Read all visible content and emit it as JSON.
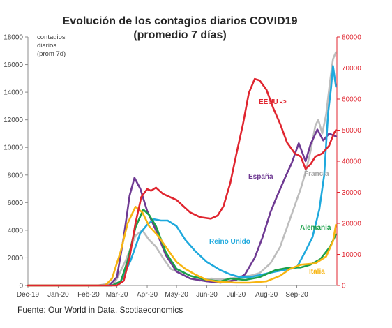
{
  "chart_data": {
    "type": "line",
    "title": "Evolución de los contagios diarios COVID19",
    "subtitle": "(promedio 7 días)",
    "ylabel_left_lines": [
      "contagios",
      "diarios",
      "(prom 7d)"
    ],
    "ylim_left": [
      0,
      18000
    ],
    "ylim_right": [
      0,
      80000
    ],
    "yticks_left": [
      0,
      2000,
      4000,
      6000,
      8000,
      10000,
      12000,
      14000,
      16000,
      18000
    ],
    "yticks_right": [
      0,
      10000,
      20000,
      30000,
      40000,
      50000,
      60000,
      70000,
      80000
    ],
    "x_range": [
      "2019-12-01",
      "2020-10-12"
    ],
    "x_ticks": [
      {
        "date": "2019-12-01",
        "label": "Dec-19"
      },
      {
        "date": "2020-01-01",
        "label": "Jan-20"
      },
      {
        "date": "2020-02-01",
        "label": "Feb-20"
      },
      {
        "date": "2020-03-01",
        "label": "Mar-20"
      },
      {
        "date": "2020-04-01",
        "label": "Apr-20"
      },
      {
        "date": "2020-05-01",
        "label": "May-20"
      },
      {
        "date": "2020-06-01",
        "label": "Jun-20"
      },
      {
        "date": "2020-07-01",
        "label": "Jul-20"
      },
      {
        "date": "2020-08-01",
        "label": "Aug-20"
      },
      {
        "date": "2020-09-01",
        "label": "Sep-20"
      }
    ],
    "grid": false,
    "series": [
      {
        "name": "Francia",
        "color": "#bdbdbd",
        "axis": "left",
        "points": [
          [
            "2019-12-01",
            0
          ],
          [
            "2020-02-10",
            0
          ],
          [
            "2020-02-28",
            200
          ],
          [
            "2020-03-10",
            1800
          ],
          [
            "2020-03-20",
            3600
          ],
          [
            "2020-03-27",
            4000
          ],
          [
            "2020-04-03",
            3300
          ],
          [
            "2020-04-10",
            2800
          ],
          [
            "2020-04-18",
            1900
          ],
          [
            "2020-04-25",
            1200
          ],
          [
            "2020-05-05",
            900
          ],
          [
            "2020-05-15",
            500
          ],
          [
            "2020-05-25",
            350
          ],
          [
            "2020-06-05",
            500
          ],
          [
            "2020-06-15",
            450
          ],
          [
            "2020-06-25",
            500
          ],
          [
            "2020-07-05",
            650
          ],
          [
            "2020-07-15",
            700
          ],
          [
            "2020-07-25",
            900
          ],
          [
            "2020-08-05",
            1600
          ],
          [
            "2020-08-15",
            2800
          ],
          [
            "2020-08-22",
            4200
          ],
          [
            "2020-08-30",
            5800
          ],
          [
            "2020-09-05",
            7000
          ],
          [
            "2020-09-10",
            8200
          ],
          [
            "2020-09-15",
            9700
          ],
          [
            "2020-09-20",
            11600
          ],
          [
            "2020-09-23",
            12000
          ],
          [
            "2020-09-27",
            11000
          ],
          [
            "2020-10-01",
            12400
          ],
          [
            "2020-10-05",
            14800
          ],
          [
            "2020-10-08",
            16400
          ],
          [
            "2020-10-11",
            16900
          ]
        ]
      },
      {
        "name": "España",
        "color": "#6f3a93",
        "axis": "left",
        "points": [
          [
            "2019-12-01",
            0
          ],
          [
            "2020-02-22",
            0
          ],
          [
            "2020-03-01",
            600
          ],
          [
            "2020-03-08",
            3500
          ],
          [
            "2020-03-14",
            6500
          ],
          [
            "2020-03-19",
            7800
          ],
          [
            "2020-03-25",
            7000
          ],
          [
            "2020-04-01",
            5400
          ],
          [
            "2020-04-10",
            4000
          ],
          [
            "2020-04-20",
            2200
          ],
          [
            "2020-05-01",
            1000
          ],
          [
            "2020-05-15",
            500
          ],
          [
            "2020-06-01",
            300
          ],
          [
            "2020-06-15",
            200
          ],
          [
            "2020-07-01",
            400
          ],
          [
            "2020-07-10",
            800
          ],
          [
            "2020-07-20",
            2000
          ],
          [
            "2020-07-28",
            3500
          ],
          [
            "2020-08-05",
            5300
          ],
          [
            "2020-08-12",
            6500
          ],
          [
            "2020-08-20",
            7800
          ],
          [
            "2020-08-27",
            8900
          ],
          [
            "2020-09-03",
            10300
          ],
          [
            "2020-09-10",
            9000
          ],
          [
            "2020-09-15",
            10200
          ],
          [
            "2020-09-22",
            11300
          ],
          [
            "2020-09-28",
            10500
          ],
          [
            "2020-10-04",
            11000
          ],
          [
            "2020-10-11",
            10800
          ]
        ]
      },
      {
        "name": "Reino Unido",
        "color": "#1fa9dd",
        "axis": "left",
        "points": [
          [
            "2019-12-01",
            0
          ],
          [
            "2020-02-25",
            0
          ],
          [
            "2020-03-05",
            300
          ],
          [
            "2020-03-15",
            1800
          ],
          [
            "2020-03-25",
            3800
          ],
          [
            "2020-04-01",
            4400
          ],
          [
            "2020-04-08",
            4800
          ],
          [
            "2020-04-15",
            4700
          ],
          [
            "2020-04-22",
            4700
          ],
          [
            "2020-05-01",
            4300
          ],
          [
            "2020-05-10",
            3300
          ],
          [
            "2020-05-20",
            2500
          ],
          [
            "2020-06-01",
            1700
          ],
          [
            "2020-06-15",
            1100
          ],
          [
            "2020-06-25",
            800
          ],
          [
            "2020-07-05",
            600
          ],
          [
            "2020-07-15",
            600
          ],
          [
            "2020-07-25",
            750
          ],
          [
            "2020-08-10",
            1000
          ],
          [
            "2020-08-25",
            1200
          ],
          [
            "2020-09-01",
            1300
          ],
          [
            "2020-09-10",
            2500
          ],
          [
            "2020-09-17",
            3500
          ],
          [
            "2020-09-24",
            5500
          ],
          [
            "2020-09-29",
            8000
          ],
          [
            "2020-10-03",
            12500
          ],
          [
            "2020-10-06",
            14300
          ],
          [
            "2020-10-08",
            15900
          ],
          [
            "2020-10-11",
            14400
          ]
        ]
      },
      {
        "name": "Alemania",
        "color": "#1ba04a",
        "axis": "left",
        "points": [
          [
            "2019-12-01",
            0
          ],
          [
            "2020-02-25",
            0
          ],
          [
            "2020-03-05",
            300
          ],
          [
            "2020-03-12",
            1800
          ],
          [
            "2020-03-20",
            4200
          ],
          [
            "2020-03-28",
            5500
          ],
          [
            "2020-04-03",
            5100
          ],
          [
            "2020-04-10",
            4300
          ],
          [
            "2020-04-20",
            2400
          ],
          [
            "2020-05-01",
            1200
          ],
          [
            "2020-05-15",
            700
          ],
          [
            "2020-06-01",
            400
          ],
          [
            "2020-06-15",
            300
          ],
          [
            "2020-06-25",
            500
          ],
          [
            "2020-07-10",
            400
          ],
          [
            "2020-07-25",
            600
          ],
          [
            "2020-08-10",
            1100
          ],
          [
            "2020-08-25",
            1300
          ],
          [
            "2020-09-05",
            1300
          ],
          [
            "2020-09-15",
            1500
          ],
          [
            "2020-09-25",
            1900
          ],
          [
            "2020-10-05",
            2800
          ],
          [
            "2020-10-11",
            3700
          ]
        ]
      },
      {
        "name": "Italia",
        "color": "#f7b512",
        "axis": "left",
        "points": [
          [
            "2019-12-01",
            0
          ],
          [
            "2020-02-18",
            0
          ],
          [
            "2020-02-25",
            500
          ],
          [
            "2020-03-05",
            2500
          ],
          [
            "2020-03-12",
            4500
          ],
          [
            "2020-03-20",
            5700
          ],
          [
            "2020-03-27",
            5300
          ],
          [
            "2020-04-03",
            4300
          ],
          [
            "2020-04-12",
            3600
          ],
          [
            "2020-04-22",
            2600
          ],
          [
            "2020-05-01",
            1700
          ],
          [
            "2020-05-10",
            1200
          ],
          [
            "2020-05-20",
            800
          ],
          [
            "2020-06-01",
            400
          ],
          [
            "2020-06-15",
            250
          ],
          [
            "2020-07-01",
            200
          ],
          [
            "2020-07-15",
            200
          ],
          [
            "2020-08-01",
            300
          ],
          [
            "2020-08-15",
            700
          ],
          [
            "2020-08-25",
            1200
          ],
          [
            "2020-09-05",
            1500
          ],
          [
            "2020-09-20",
            1600
          ],
          [
            "2020-10-01",
            2100
          ],
          [
            "2020-10-08",
            3200
          ],
          [
            "2020-10-11",
            4400
          ]
        ]
      },
      {
        "name": "EEUU",
        "color": "#e0252f",
        "axis": "right",
        "points": [
          [
            "2019-12-01",
            0
          ],
          [
            "2020-03-01",
            0
          ],
          [
            "2020-03-08",
            1500
          ],
          [
            "2020-03-14",
            9000
          ],
          [
            "2020-03-20",
            20000
          ],
          [
            "2020-03-26",
            28500
          ],
          [
            "2020-04-01",
            31000
          ],
          [
            "2020-04-05",
            30500
          ],
          [
            "2020-04-10",
            31500
          ],
          [
            "2020-04-17",
            29500
          ],
          [
            "2020-04-24",
            28500
          ],
          [
            "2020-05-01",
            27500
          ],
          [
            "2020-05-08",
            25500
          ],
          [
            "2020-05-15",
            23500
          ],
          [
            "2020-05-25",
            22000
          ],
          [
            "2020-06-05",
            21500
          ],
          [
            "2020-06-12",
            22500
          ],
          [
            "2020-06-18",
            25500
          ],
          [
            "2020-06-25",
            33000
          ],
          [
            "2020-07-01",
            42000
          ],
          [
            "2020-07-08",
            52000
          ],
          [
            "2020-07-14",
            62000
          ],
          [
            "2020-07-20",
            66500
          ],
          [
            "2020-07-25",
            66000
          ],
          [
            "2020-08-01",
            63000
          ],
          [
            "2020-08-08",
            57000
          ],
          [
            "2020-08-15",
            52000
          ],
          [
            "2020-08-22",
            46000
          ],
          [
            "2020-08-30",
            42500
          ],
          [
            "2020-09-05",
            41500
          ],
          [
            "2020-09-10",
            37500
          ],
          [
            "2020-09-15",
            39000
          ],
          [
            "2020-09-20",
            41500
          ],
          [
            "2020-09-27",
            42500
          ],
          [
            "2020-10-04",
            45000
          ],
          [
            "2020-10-09",
            49000
          ],
          [
            "2020-10-11",
            50000
          ]
        ]
      }
    ],
    "annotations": [
      {
        "text": "EEUU ->",
        "color": "#e0252f"
      },
      {
        "text": "España",
        "color": "#6f3a93"
      },
      {
        "text": "Francia",
        "color": "#a6a6a6"
      },
      {
        "text": "Reino Unido",
        "color": "#1fa9dd"
      },
      {
        "text": "Alemania",
        "color": "#1ba04a"
      },
      {
        "text": "Italia",
        "color": "#f7b512"
      }
    ],
    "source": "Fuente: Our World in Data, Scotiaeconomics"
  }
}
